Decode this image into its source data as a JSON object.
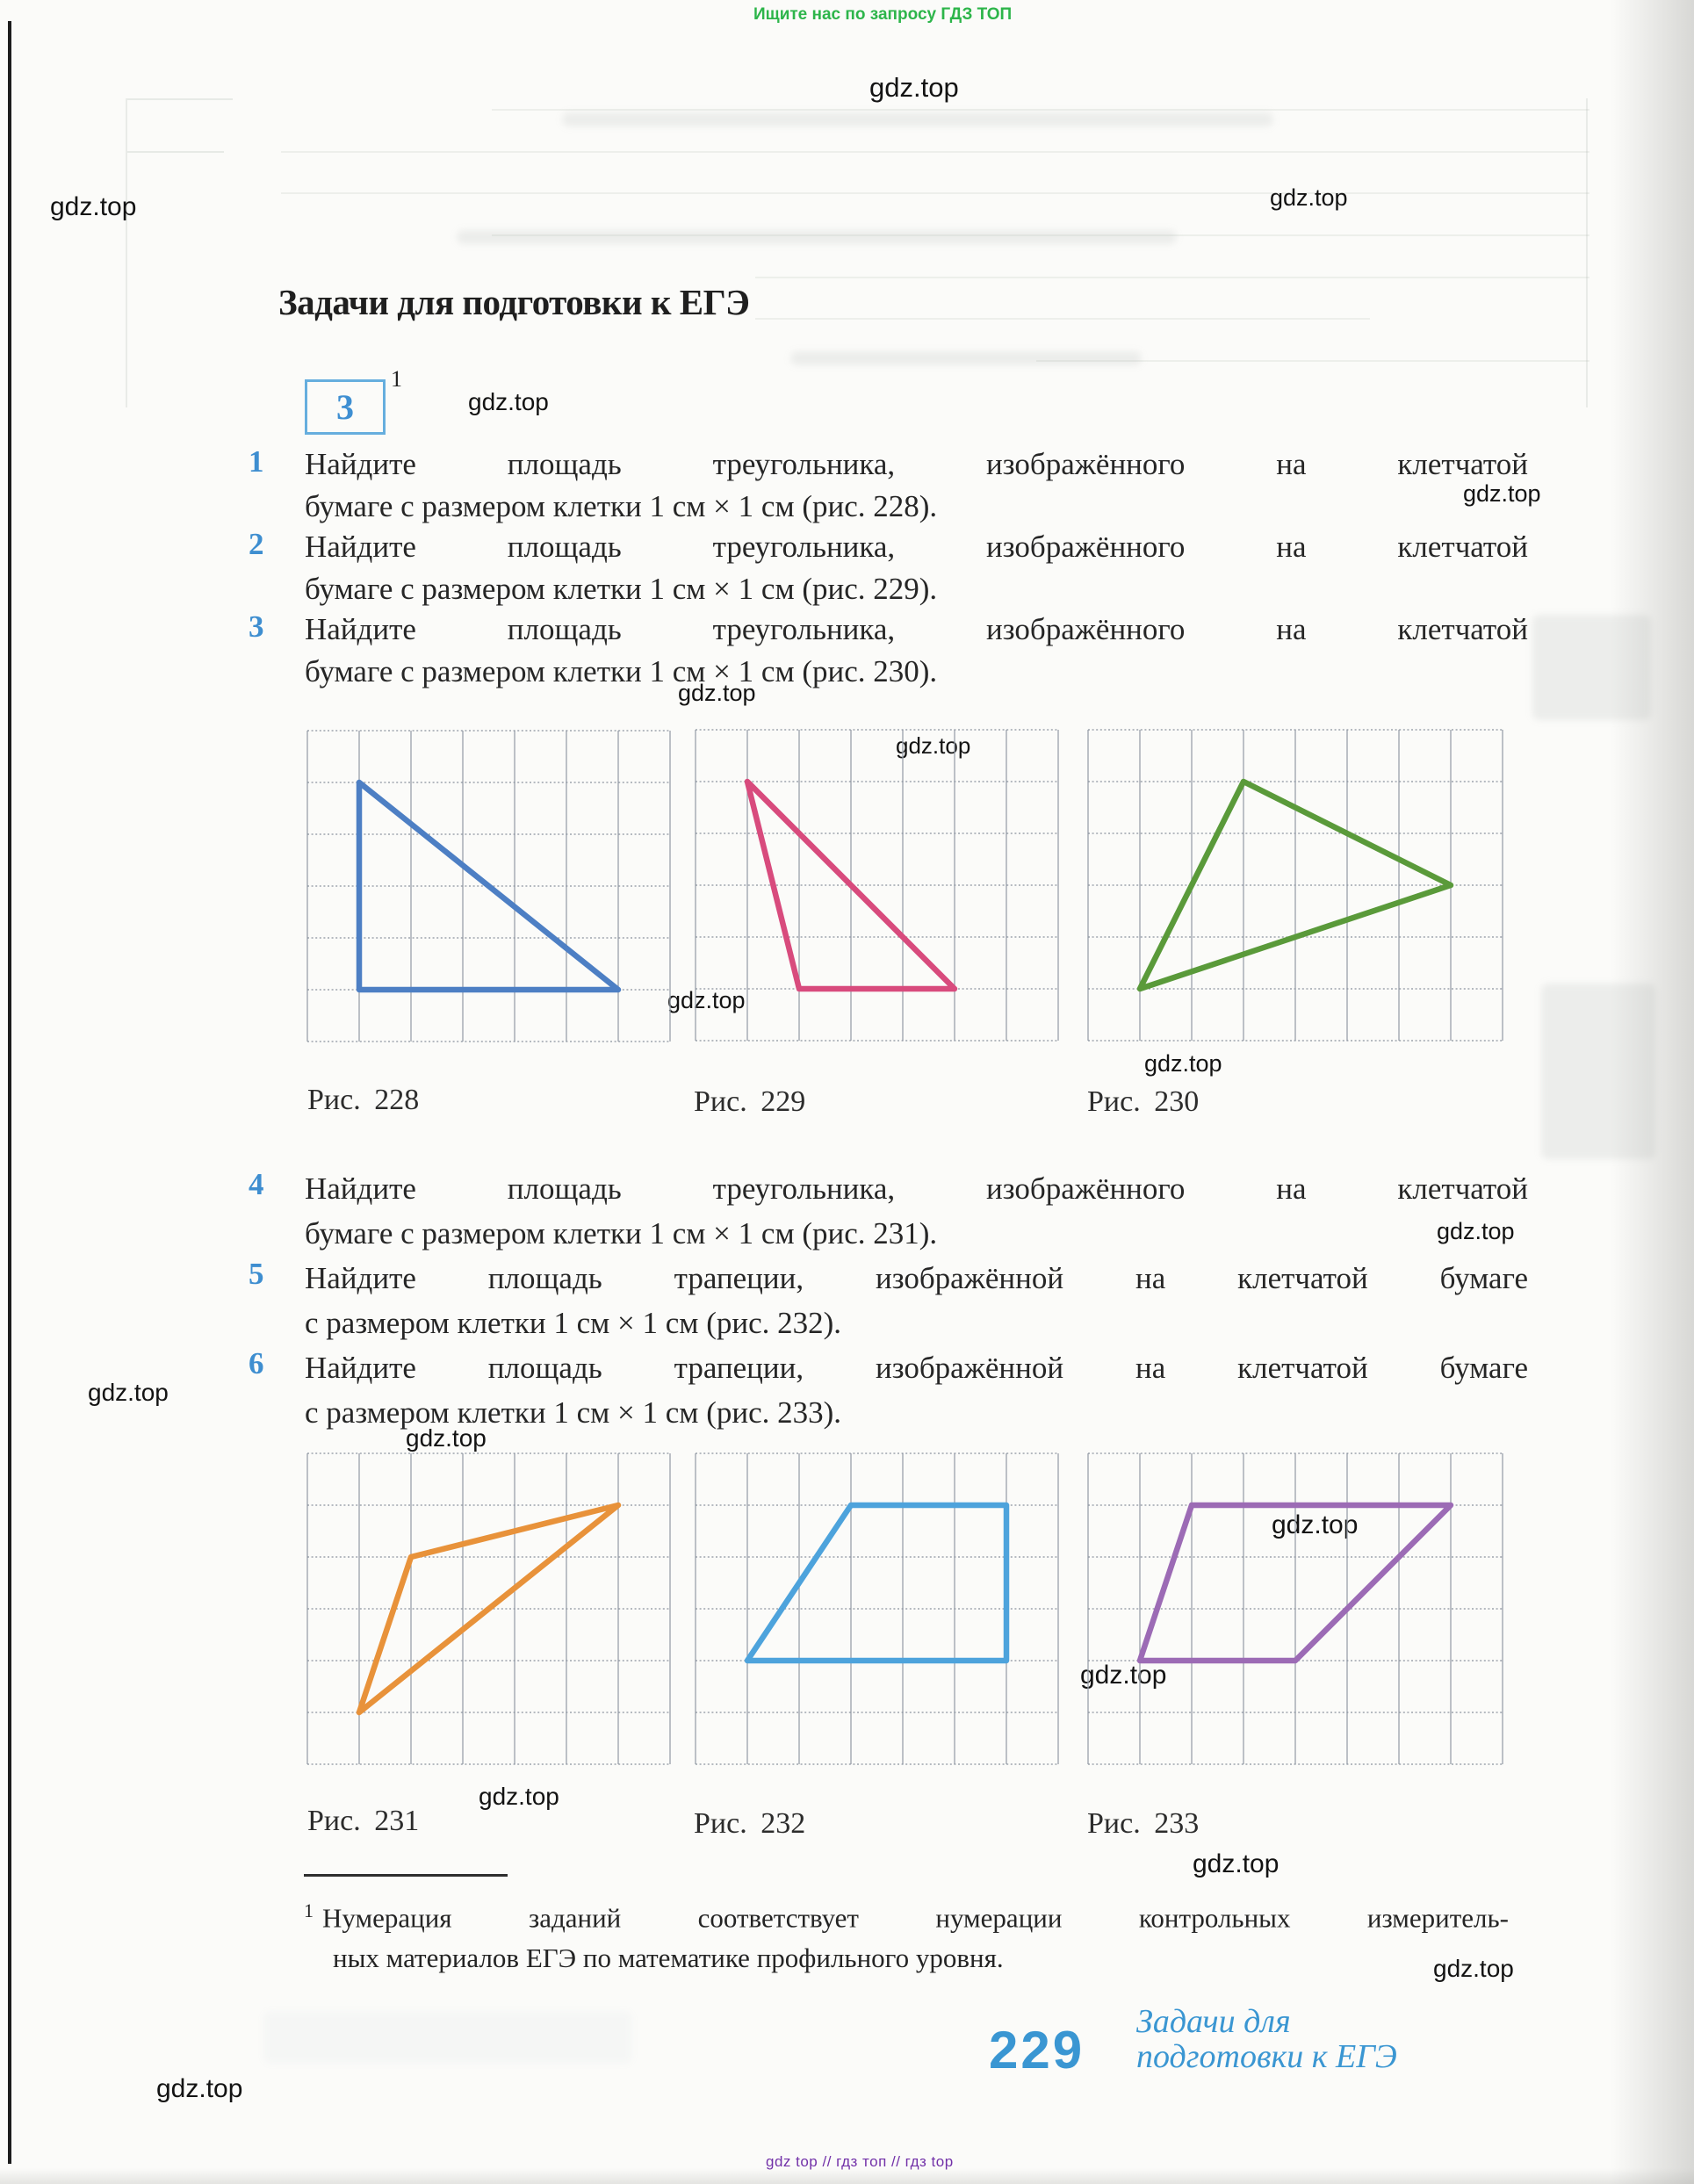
{
  "watermarks": {
    "top_notice": "Ищите нас по запросу ГДЗ ТОП",
    "brand": "gdz.top",
    "bottom_line": "gdz top // гдз топ // гдз top"
  },
  "header": {
    "title": "Задачи для подготовки к ЕГЭ",
    "box_number": "3",
    "box_footnote_ref": "1"
  },
  "problems": [
    {
      "num": "1",
      "line1": "Найдите площадь треугольника, изображённого на клетчатой",
      "line2": "бумаге с размером клетки 1 см × 1 см (рис. 228)."
    },
    {
      "num": "2",
      "line1": "Найдите площадь треугольника, изображённого на клетчатой",
      "line2": "бумаге с размером клетки 1 см × 1 см (рис. 229)."
    },
    {
      "num": "3",
      "line1": "Найдите площадь треугольника, изображённого на клетчатой",
      "line2": "бумаге с размером клетки 1 см × 1 см (рис. 230)."
    },
    {
      "num": "4",
      "line1": "Найдите площадь треугольника, изображённого на клетчатой",
      "line2": "бумаге с размером клетки 1 см × 1 см (рис. 231)."
    },
    {
      "num": "5",
      "line1": "Найдите площадь трапеции, изображённой на клетчатой бумаге",
      "line2": "с размером клетки 1 см × 1 см (рис. 232)."
    },
    {
      "num": "6",
      "line1": "Найдите площадь трапеции, изображённой на клетчатой бумаге",
      "line2": "с размером клетки 1 см × 1 см (рис. 233)."
    }
  ],
  "figures": [
    {
      "caption": "Рис. 228",
      "shape": "triangle",
      "color": "#4d7fc4",
      "grid": {
        "cols": 7,
        "rows": 6
      },
      "points": [
        [
          1,
          1
        ],
        [
          1,
          5
        ],
        [
          6,
          5
        ]
      ]
    },
    {
      "caption": "Рис. 229",
      "shape": "triangle",
      "color": "#d84b7d",
      "grid": {
        "cols": 7,
        "rows": 6
      },
      "points": [
        [
          1,
          1
        ],
        [
          2,
          5
        ],
        [
          5,
          5
        ]
      ]
    },
    {
      "caption": "Рис. 230",
      "shape": "triangle",
      "color": "#5a9a3a",
      "grid": {
        "cols": 8,
        "rows": 6
      },
      "points": [
        [
          3,
          1
        ],
        [
          7,
          3
        ],
        [
          1,
          5
        ]
      ]
    },
    {
      "caption": "Рис. 231",
      "shape": "triangle",
      "color": "#e8923a",
      "grid": {
        "cols": 7,
        "rows": 6
      },
      "points": [
        [
          6,
          1
        ],
        [
          2,
          2
        ],
        [
          1,
          5
        ]
      ]
    },
    {
      "caption": "Рис. 232",
      "shape": "trapezoid",
      "color": "#4da3dc",
      "grid": {
        "cols": 7,
        "rows": 6
      },
      "points": [
        [
          3,
          1
        ],
        [
          6,
          1
        ],
        [
          6,
          4
        ],
        [
          1,
          4
        ]
      ]
    },
    {
      "caption": "Рис. 233",
      "shape": "trapezoid",
      "color": "#9c6bb5",
      "grid": {
        "cols": 8,
        "rows": 6
      },
      "points": [
        [
          2,
          1
        ],
        [
          7,
          1
        ],
        [
          4,
          4
        ],
        [
          1,
          4
        ]
      ]
    }
  ],
  "footnote": {
    "marker": "1",
    "line1": "Нумерация заданий соответствует нумерации контрольных измеритель-",
    "line2": "ных материалов ЕГЭ по математике профильного уровня."
  },
  "footer": {
    "page_number": "229",
    "label_line1": "Задачи для",
    "label_line2": "подготовки к ЕГЭ"
  }
}
